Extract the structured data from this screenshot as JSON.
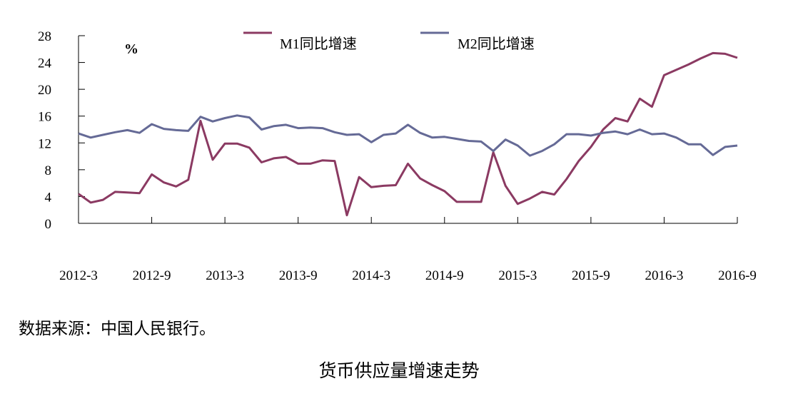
{
  "chart_data": {
    "type": "line",
    "title": "货币供应量增速走势",
    "unit_label": "%",
    "source_note": "数据来源：中国人民银行。",
    "xlabel": "",
    "ylabel": "",
    "ylim": [
      0,
      28
    ],
    "yticks": [
      0,
      4,
      8,
      12,
      16,
      20,
      24,
      28
    ],
    "x_tick_labels": [
      "2012-3",
      "2012-9",
      "2013-3",
      "2013-9",
      "2014-3",
      "2014-9",
      "2015-3",
      "2015-9",
      "2016-3",
      "2016-9"
    ],
    "x": [
      "2012-3",
      "2012-4",
      "2012-5",
      "2012-6",
      "2012-7",
      "2012-8",
      "2012-9",
      "2012-10",
      "2012-11",
      "2012-12",
      "2013-1",
      "2013-2",
      "2013-3",
      "2013-4",
      "2013-5",
      "2013-6",
      "2013-7",
      "2013-8",
      "2013-9",
      "2013-10",
      "2013-11",
      "2013-12",
      "2014-1",
      "2014-2",
      "2014-3",
      "2014-4",
      "2014-5",
      "2014-6",
      "2014-7",
      "2014-8",
      "2014-9",
      "2014-10",
      "2014-11",
      "2014-12",
      "2015-1",
      "2015-2",
      "2015-3",
      "2015-4",
      "2015-5",
      "2015-6",
      "2015-7",
      "2015-8",
      "2015-9",
      "2015-10",
      "2015-11",
      "2015-12",
      "2016-1",
      "2016-2",
      "2016-3",
      "2016-4",
      "2016-5",
      "2016-6",
      "2016-7",
      "2016-8",
      "2016-9"
    ],
    "legend_position": "top",
    "grid": false,
    "series": [
      {
        "name": "M1同比增速",
        "color": "#8b3a62",
        "values": [
          4.4,
          3.1,
          3.5,
          4.7,
          4.6,
          4.5,
          7.3,
          6.1,
          5.5,
          6.5,
          15.3,
          9.5,
          11.9,
          11.9,
          11.3,
          9.1,
          9.7,
          9.9,
          8.9,
          8.9,
          9.4,
          9.3,
          1.2,
          6.9,
          5.4,
          5.6,
          5.7,
          8.9,
          6.7,
          5.7,
          4.8,
          3.2,
          3.2,
          3.2,
          10.6,
          5.6,
          2.9,
          3.7,
          4.7,
          4.3,
          6.6,
          9.3,
          11.4,
          14.0,
          15.7,
          15.2,
          18.6,
          17.4,
          22.1,
          22.9,
          23.7,
          24.6,
          25.4,
          25.3,
          24.7
        ]
      },
      {
        "name": "M2同比增速",
        "color": "#656a96",
        "values": [
          13.4,
          12.8,
          13.2,
          13.6,
          13.9,
          13.5,
          14.8,
          14.1,
          13.9,
          13.8,
          15.9,
          15.2,
          15.7,
          16.1,
          15.8,
          14.0,
          14.5,
          14.7,
          14.2,
          14.3,
          14.2,
          13.6,
          13.2,
          13.3,
          12.1,
          13.2,
          13.4,
          14.7,
          13.5,
          12.8,
          12.9,
          12.6,
          12.3,
          12.2,
          10.8,
          12.5,
          11.6,
          10.1,
          10.8,
          11.8,
          13.3,
          13.3,
          13.1,
          13.5,
          13.7,
          13.3,
          14.0,
          13.3,
          13.4,
          12.8,
          11.8,
          11.8,
          10.2,
          11.4,
          11.6
        ]
      }
    ]
  }
}
